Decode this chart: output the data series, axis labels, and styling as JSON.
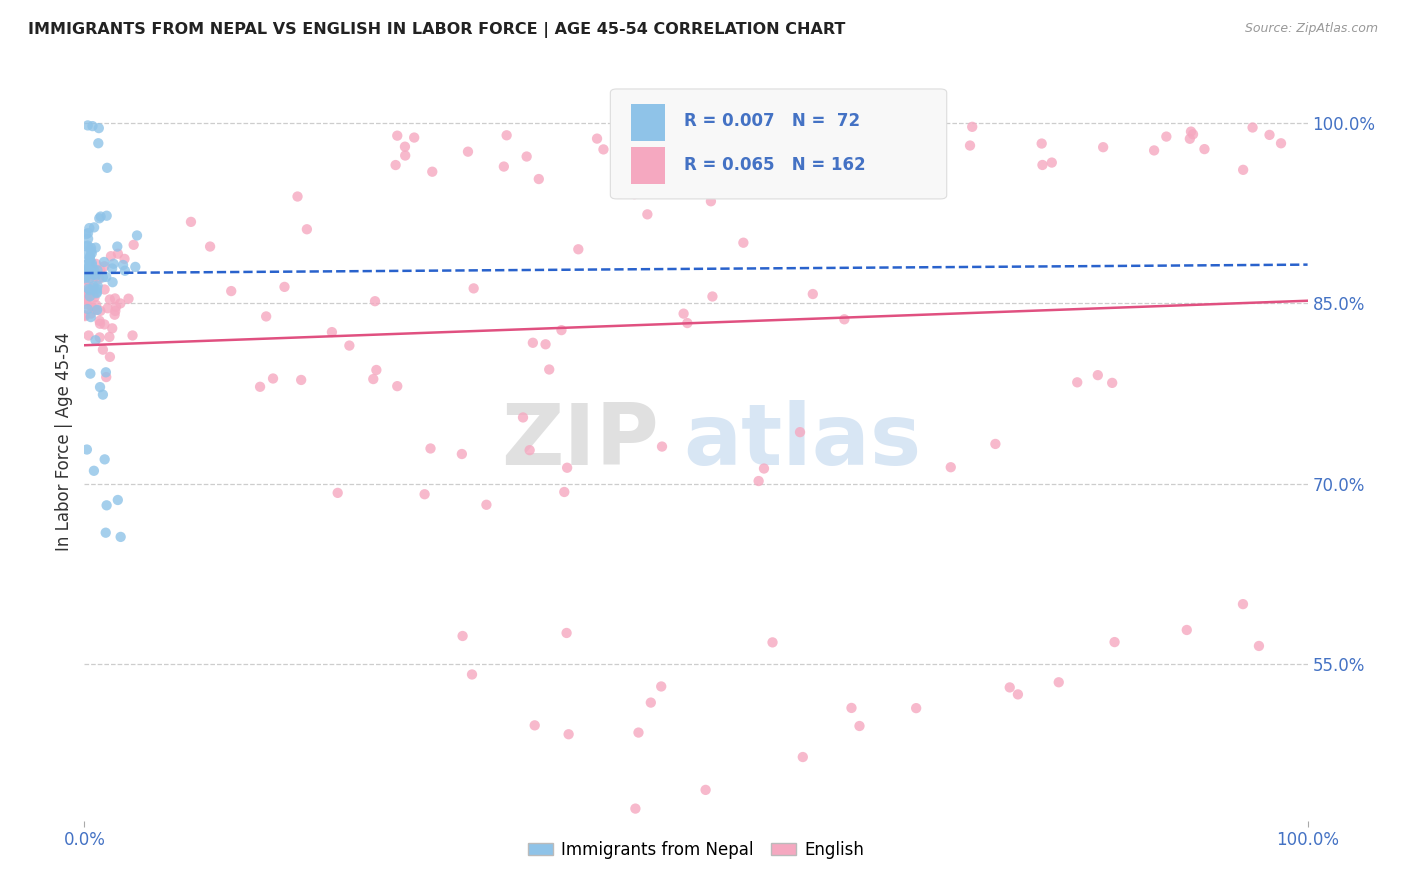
{
  "title": "IMMIGRANTS FROM NEPAL VS ENGLISH IN LABOR FORCE | AGE 45-54 CORRELATION CHART",
  "source": "Source: ZipAtlas.com",
  "ylabel": "In Labor Force | Age 45-54",
  "y_tick_labels_right": [
    "55.0%",
    "70.0%",
    "85.0%",
    "100.0%"
  ],
  "y_ticks_right": [
    0.55,
    0.7,
    0.85,
    1.0
  ],
  "legend_labels": [
    "Immigrants from Nepal",
    "English"
  ],
  "nepal_R": "0.007",
  "nepal_N": "72",
  "english_R": "0.065",
  "english_N": "162",
  "blue_scatter_color": "#8fc3e8",
  "blue_line_color": "#2962cc",
  "pink_scatter_color": "#f5a8c0",
  "pink_line_color": "#e05080",
  "axis_label_color": "#4472c4",
  "title_color": "#222222",
  "background_color": "#ffffff",
  "grid_color": "#c8c8c8",
  "xlim": [
    0.0,
    1.0
  ],
  "ylim": [
    0.42,
    1.05
  ],
  "nepal_trend_x0": 0.0,
  "nepal_trend_x1": 1.0,
  "nepal_trend_y0": 0.875,
  "nepal_trend_y1": 0.882,
  "english_trend_x0": 0.0,
  "english_trend_x1": 1.0,
  "english_trend_y0": 0.815,
  "english_trend_y1": 0.852
}
